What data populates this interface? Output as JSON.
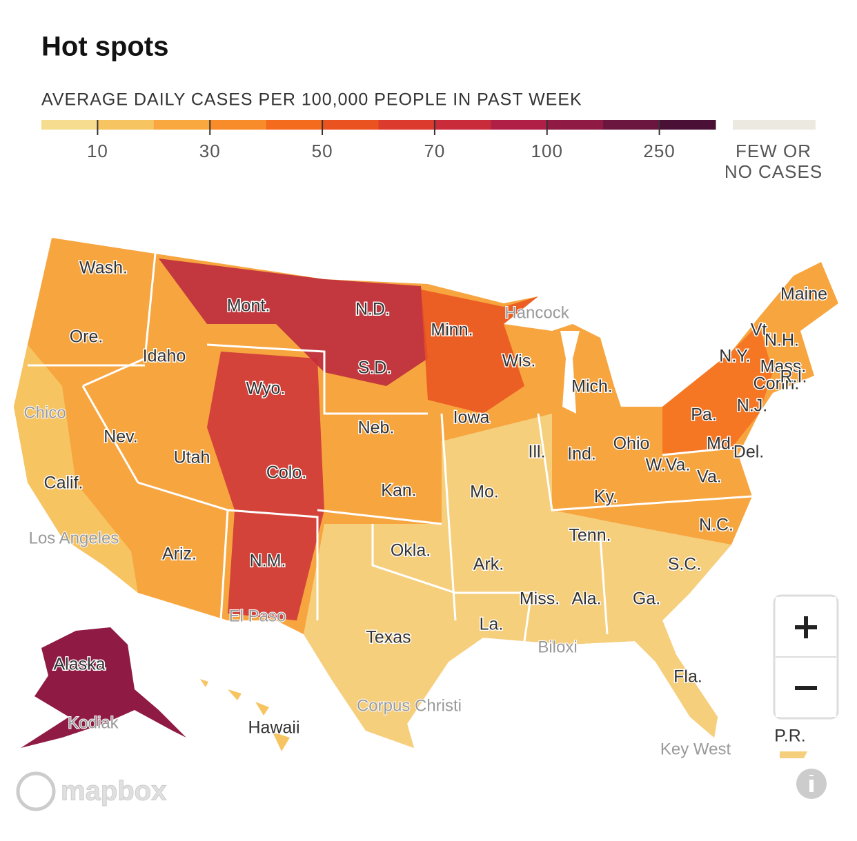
{
  "header": {
    "title": "Hot spots"
  },
  "legend": {
    "label": "AVERAGE DAILY CASES PER 100,000 PEOPLE IN PAST WEEK",
    "colors": [
      "#f5dc8e",
      "#f7c462",
      "#f9a83f",
      "#f88c2a",
      "#f46b1e",
      "#ea5220",
      "#db3a2c",
      "#c92b3a",
      "#b01f45",
      "#8f1a44",
      "#6b163f",
      "#4a1035"
    ],
    "ticks": [
      "10",
      "30",
      "50",
      "70",
      "100",
      "250"
    ],
    "no_data": {
      "color": "#ece9e0",
      "lines": [
        "FEW OR",
        "NO CASES"
      ]
    }
  },
  "map": {
    "state_labels": [
      "Wash.",
      "Mont.",
      "N.D.",
      "Minn.",
      "Maine",
      "Vt.",
      "N.H.",
      "Ore.",
      "Idaho",
      "Wis.",
      "N.Y.",
      "Mass.",
      "S.D.",
      "Conn.",
      "R.I.",
      "Wyo.",
      "Mich.",
      "Pa.",
      "N.J.",
      "Nev.",
      "Iowa",
      "Neb.",
      "Ill.",
      "Ind.",
      "Ohio",
      "Md.",
      "Del.",
      "Utah",
      "Colo.",
      "W.Va.",
      "Va.",
      "Calif.",
      "Kan.",
      "Mo.",
      "Ky.",
      "Tenn.",
      "N.C.",
      "Ariz.",
      "N.M.",
      "Okla.",
      "Ark.",
      "S.C.",
      "Miss.",
      "Ala.",
      "Ga.",
      "La.",
      "Texas",
      "Fla.",
      "Alaska",
      "Hawaii",
      "P.R."
    ],
    "city_labels": [
      "Hancock",
      "Chico",
      "Los Angeles",
      "El Paso",
      "Biloxi",
      "Corpus Christi",
      "Kodiak",
      "Key West"
    ],
    "attribution": "mapbox"
  }
}
